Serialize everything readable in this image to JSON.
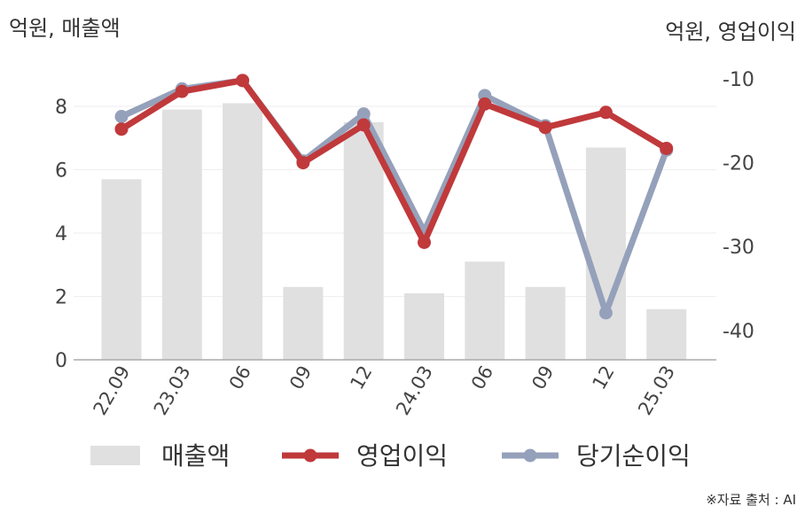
{
  "units": {
    "left": "억원, 매출액",
    "right": "억원, 영업이익"
  },
  "source": "※자료 출처 : AI",
  "chart_data": {
    "type": "bar+line",
    "categories": [
      "22.09",
      "23.03",
      "06",
      "09",
      "12",
      "24.03",
      "06",
      "09",
      "12",
      "25.03"
    ],
    "bars": {
      "name": "매출액",
      "color": "#e0e0e0",
      "values": [
        5.7,
        7.9,
        8.1,
        2.3,
        7.5,
        2.1,
        3.1,
        2.3,
        6.7,
        1.6
      ]
    },
    "lines": [
      {
        "name": "영업이익",
        "color": "#c0393b",
        "values": [
          -16.0,
          -11.5,
          -10.2,
          -20.0,
          -15.5,
          -29.5,
          -13.0,
          -15.8,
          -14.0,
          -18.3
        ]
      },
      {
        "name": "당기순이익",
        "color": "#95a1ba",
        "values": [
          -14.5,
          -11.2,
          -10.2,
          -19.8,
          -14.2,
          -28.2,
          -12.0,
          -15.6,
          -37.9,
          -18.5
        ]
      }
    ],
    "y_left": {
      "ticks": [
        0,
        2,
        4,
        6,
        8
      ],
      "range": [
        0,
        9.4
      ]
    },
    "y_right": {
      "ticks": [
        -10,
        -20,
        -30,
        -40
      ],
      "range": [
        -43.5,
        -8.0
      ]
    },
    "grid": true,
    "legend_position": "bottom"
  }
}
